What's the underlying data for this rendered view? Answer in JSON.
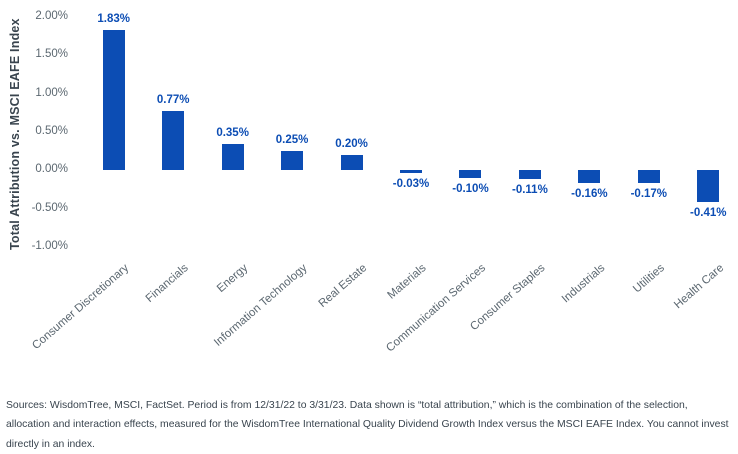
{
  "chart_data": {
    "type": "bar",
    "categories": [
      "Consumer Discretionary",
      "Financials",
      "Energy",
      "Information Technology",
      "Real Estate",
      "Materials",
      "Communication Services",
      "Consumer Staples",
      "Industrials",
      "Utilities",
      "Health Care"
    ],
    "values": [
      1.83,
      0.77,
      0.35,
      0.25,
      0.2,
      -0.03,
      -0.1,
      -0.11,
      -0.16,
      -0.17,
      -0.41
    ],
    "data_labels": [
      "1.83%",
      "0.77%",
      "0.35%",
      "0.25%",
      "0.20%",
      "-0.03%",
      "-0.10%",
      "-0.11%",
      "-0.16%",
      "-0.17%",
      "-0.41%"
    ],
    "title": "",
    "xlabel": "",
    "ylabel": "Total Attribution vs. MSCI EAFE Index",
    "ylim": [
      -1.0,
      2.0
    ],
    "yticks": [
      "2.00%",
      "1.50%",
      "1.00%",
      "0.50%",
      "0.00%",
      "-0.50%",
      "-1.00%"
    ],
    "ytick_values": [
      2.0,
      1.5,
      1.0,
      0.5,
      0.0,
      -0.5,
      -1.0
    ],
    "grid": false,
    "legend": "none",
    "bar_color": "#0c4db4",
    "label_color": "#0c4db4",
    "axis_text_color": "#5b6770",
    "axis_title_color": "#39444e"
  },
  "footer": {
    "text": "Sources: WisdomTree, MSCI, FactSet. Period is from 12/31/22 to 3/31/23. Data shown is “total attribution,” which is the combination of the selection, allocation and interaction effects, measured for the WisdomTree International Quality Dividend Growth Index versus the MSCI EAFE Index. You cannot invest directly in an index."
  }
}
